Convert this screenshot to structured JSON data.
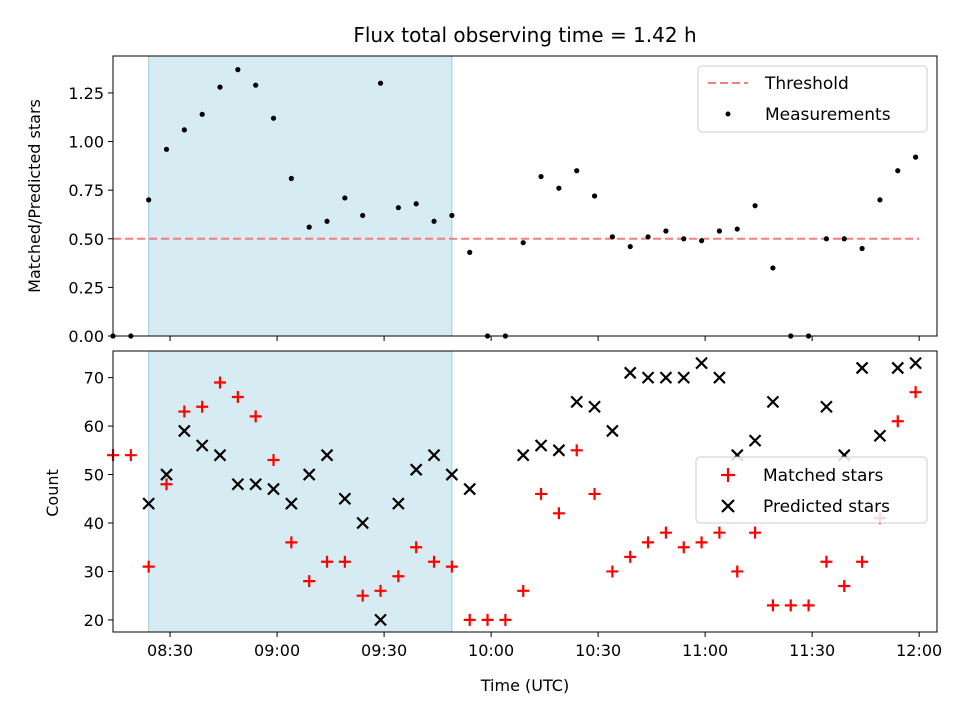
{
  "chart_data": [
    {
      "type": "scatter",
      "title": "Flux total observing time = 1.42 h",
      "xlabel": "",
      "ylabel": "Matched/Predicted stars",
      "xlim": [
        "08:14",
        "12:05"
      ],
      "ylim": [
        0,
        1.44
      ],
      "yticks": [
        "0.00",
        "0.25",
        "0.50",
        "0.75",
        "1.00",
        "1.25"
      ],
      "shaded_interval": [
        "08:24",
        "09:49"
      ],
      "grid": false,
      "legend_position": "top-right",
      "threshold": {
        "name": "Threshold",
        "value": 0.5,
        "x_range": [
          "08:14",
          "12:00"
        ],
        "color": "#f08080"
      },
      "series": [
        {
          "name": "Measurements",
          "color": "#000000",
          "x": [
            "08:14",
            "08:19",
            "08:24",
            "08:29",
            "08:34",
            "08:39",
            "08:44",
            "08:49",
            "08:54",
            "08:59",
            "09:04",
            "09:09",
            "09:14",
            "09:19",
            "09:24",
            "09:29",
            "09:34",
            "09:39",
            "09:44",
            "09:49",
            "09:54",
            "09:59",
            "10:04",
            "10:09",
            "10:14",
            "10:19",
            "10:24",
            "10:29",
            "10:34",
            "10:39",
            "10:44",
            "10:49",
            "10:54",
            "10:59",
            "11:04",
            "11:09",
            "11:14",
            "11:19",
            "11:24",
            "11:29",
            "11:34",
            "11:39",
            "11:44",
            "11:49",
            "11:54",
            "11:59"
          ],
          "y": [
            0.0,
            0.0,
            0.7,
            0.96,
            1.06,
            1.14,
            1.28,
            1.37,
            1.29,
            1.12,
            0.81,
            0.56,
            0.59,
            0.71,
            0.62,
            1.3,
            0.66,
            0.68,
            0.59,
            0.62,
            0.43,
            0.0,
            0.0,
            0.48,
            0.82,
            0.76,
            0.85,
            0.72,
            0.51,
            0.46,
            0.51,
            0.54,
            0.5,
            0.49,
            0.54,
            0.55,
            0.67,
            0.35,
            0.0,
            0.0,
            0.5,
            0.5,
            0.45,
            0.7,
            0.85,
            0.92
          ]
        }
      ]
    },
    {
      "type": "scatter",
      "title": "",
      "xlabel": "Time (UTC)",
      "ylabel": "Count",
      "xlim": [
        "08:14",
        "12:05"
      ],
      "ylim": [
        17.5,
        75.5
      ],
      "yticks": [
        "20",
        "30",
        "40",
        "50",
        "60",
        "70"
      ],
      "xticks": [
        "08:30",
        "09:00",
        "09:30",
        "10:00",
        "10:30",
        "11:00",
        "11:30",
        "12:00"
      ],
      "shaded_interval": [
        "08:24",
        "09:49"
      ],
      "grid": false,
      "legend_position": "center-right",
      "series": [
        {
          "name": "Matched stars",
          "marker": "plus",
          "color": "#ff0000",
          "x": [
            "08:14",
            "08:19",
            "08:24",
            "08:29",
            "08:34",
            "08:39",
            "08:44",
            "08:49",
            "08:54",
            "08:59",
            "09:04",
            "09:09",
            "09:14",
            "09:19",
            "09:24",
            "09:29",
            "09:34",
            "09:39",
            "09:44",
            "09:49",
            "09:54",
            "09:59",
            "10:04",
            "10:09",
            "10:14",
            "10:19",
            "10:24",
            "10:29",
            "10:34",
            "10:39",
            "10:44",
            "10:49",
            "10:54",
            "10:59",
            "11:04",
            "11:09",
            "11:14",
            "11:19",
            "11:24",
            "11:29",
            "11:34",
            "11:39",
            "11:44",
            "11:49",
            "11:54",
            "11:59"
          ],
          "y": [
            54,
            54,
            31,
            48,
            63,
            64,
            69,
            66,
            62,
            53,
            36,
            28,
            32,
            32,
            25,
            26,
            29,
            35,
            32,
            31,
            20,
            20,
            20,
            26,
            46,
            42,
            55,
            46,
            30,
            33,
            36,
            38,
            35,
            36,
            38,
            30,
            38,
            23,
            23,
            23,
            32,
            27,
            32,
            41,
            61,
            67
          ]
        },
        {
          "name": "Predicted stars",
          "marker": "x",
          "color": "#000000",
          "x": [
            "08:24",
            "08:29",
            "08:34",
            "08:39",
            "08:44",
            "08:49",
            "08:54",
            "08:59",
            "09:04",
            "09:09",
            "09:14",
            "09:19",
            "09:24",
            "09:29",
            "09:34",
            "09:39",
            "09:44",
            "09:49",
            "09:54",
            "10:09",
            "10:14",
            "10:19",
            "10:24",
            "10:29",
            "10:34",
            "10:39",
            "10:44",
            "10:49",
            "10:54",
            "10:59",
            "11:04",
            "11:09",
            "11:14",
            "11:19",
            "11:34",
            "11:39",
            "11:44",
            "11:49",
            "11:54",
            "11:59"
          ],
          "y": [
            44,
            50,
            59,
            56,
            54,
            48,
            48,
            47,
            44,
            50,
            54,
            45,
            40,
            20,
            44,
            51,
            54,
            50,
            47,
            54,
            56,
            55,
            65,
            64,
            59,
            71,
            70,
            70,
            70,
            73,
            70,
            54,
            57,
            65,
            64,
            54,
            72,
            58,
            72,
            73
          ]
        }
      ]
    }
  ]
}
